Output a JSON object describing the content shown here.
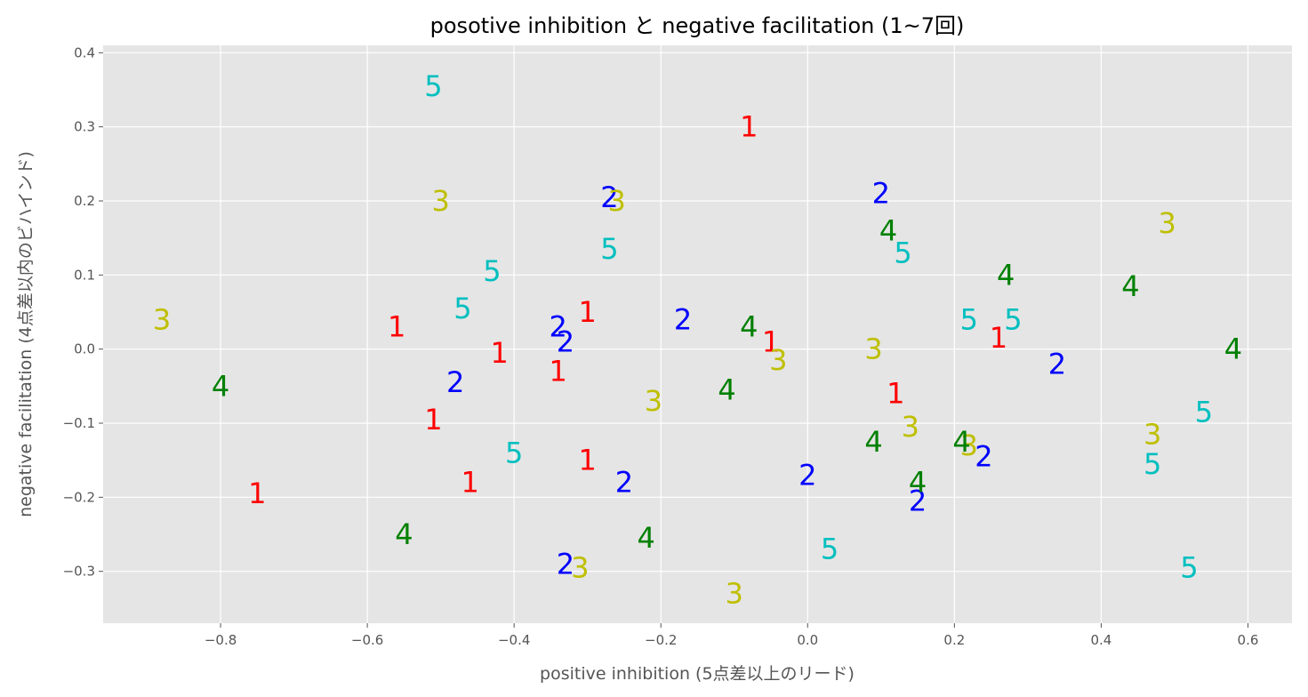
{
  "chart_data": {
    "type": "scatter",
    "title": "posotive inhibition と negative facilitation (1~7回)",
    "xlabel": "positive inhibition (5点差以上のリード)",
    "ylabel": "negative facilitation (4点差以内のビハインド)",
    "xlim": [
      -0.96,
      0.66
    ],
    "ylim": [
      -0.37,
      0.41
    ],
    "xticks": [
      -0.8,
      -0.6,
      -0.4,
      -0.2,
      0.0,
      0.2,
      0.4,
      0.6
    ],
    "xtick_labels": [
      "−0.8",
      "−0.6",
      "−0.4",
      "−0.2",
      "0.0",
      "0.2",
      "0.4",
      "0.6"
    ],
    "yticks": [
      -0.3,
      -0.2,
      -0.1,
      0.0,
      0.1,
      0.2,
      0.3,
      0.4
    ],
    "ytick_labels": [
      "−0.3",
      "−0.2",
      "−0.1",
      "0.0",
      "0.1",
      "0.2",
      "0.3",
      "0.4"
    ],
    "grid": true,
    "series": [
      {
        "label": "1",
        "color": "#ff0000",
        "points": [
          {
            "x": -0.08,
            "y": 0.3
          },
          {
            "x": -0.3,
            "y": 0.05
          },
          {
            "x": -0.56,
            "y": 0.03
          },
          {
            "x": -0.42,
            "y": -0.005
          },
          {
            "x": -0.34,
            "y": -0.03
          },
          {
            "x": -0.51,
            "y": -0.095
          },
          {
            "x": -0.3,
            "y": -0.15
          },
          {
            "x": -0.46,
            "y": -0.18
          },
          {
            "x": -0.75,
            "y": -0.195
          },
          {
            "x": -0.05,
            "y": 0.01
          },
          {
            "x": 0.12,
            "y": -0.06
          },
          {
            "x": 0.26,
            "y": 0.015
          }
        ]
      },
      {
        "label": "2",
        "color": "#0000ff",
        "points": [
          {
            "x": -0.27,
            "y": 0.205
          },
          {
            "x": 0.1,
            "y": 0.21
          },
          {
            "x": -0.34,
            "y": 0.03
          },
          {
            "x": -0.33,
            "y": 0.01
          },
          {
            "x": -0.17,
            "y": 0.04
          },
          {
            "x": -0.48,
            "y": -0.045
          },
          {
            "x": -0.25,
            "y": -0.18
          },
          {
            "x": 0.0,
            "y": -0.17
          },
          {
            "x": -0.33,
            "y": -0.29
          },
          {
            "x": 0.34,
            "y": -0.02
          },
          {
            "x": 0.24,
            "y": -0.145
          },
          {
            "x": 0.15,
            "y": -0.205
          }
        ]
      },
      {
        "label": "3",
        "color": "#bfbf00",
        "points": [
          {
            "x": -0.5,
            "y": 0.2
          },
          {
            "x": -0.26,
            "y": 0.2
          },
          {
            "x": -0.88,
            "y": 0.04
          },
          {
            "x": -0.21,
            "y": -0.07
          },
          {
            "x": -0.04,
            "y": -0.015
          },
          {
            "x": 0.09,
            "y": 0.0
          },
          {
            "x": 0.14,
            "y": -0.105
          },
          {
            "x": 0.22,
            "y": -0.13
          },
          {
            "x": 0.49,
            "y": 0.17
          },
          {
            "x": 0.47,
            "y": -0.115
          },
          {
            "x": -0.31,
            "y": -0.295
          },
          {
            "x": -0.1,
            "y": -0.33
          }
        ]
      },
      {
        "label": "4",
        "color": "#008000",
        "points": [
          {
            "x": 0.11,
            "y": 0.16
          },
          {
            "x": 0.27,
            "y": 0.1
          },
          {
            "x": 0.44,
            "y": 0.085
          },
          {
            "x": -0.08,
            "y": 0.03
          },
          {
            "x": -0.11,
            "y": -0.055
          },
          {
            "x": -0.8,
            "y": -0.05
          },
          {
            "x": 0.09,
            "y": -0.125
          },
          {
            "x": 0.21,
            "y": -0.125
          },
          {
            "x": 0.15,
            "y": -0.18
          },
          {
            "x": 0.58,
            "y": 0.0
          },
          {
            "x": -0.55,
            "y": -0.25
          },
          {
            "x": -0.22,
            "y": -0.255
          }
        ]
      },
      {
        "label": "5",
        "color": "#00bfbf",
        "points": [
          {
            "x": -0.51,
            "y": 0.355
          },
          {
            "x": -0.27,
            "y": 0.135
          },
          {
            "x": -0.43,
            "y": 0.105
          },
          {
            "x": -0.47,
            "y": 0.055
          },
          {
            "x": 0.13,
            "y": 0.13
          },
          {
            "x": 0.22,
            "y": 0.04
          },
          {
            "x": 0.28,
            "y": 0.04
          },
          {
            "x": -0.4,
            "y": -0.14
          },
          {
            "x": 0.54,
            "y": -0.085
          },
          {
            "x": 0.47,
            "y": -0.155
          },
          {
            "x": 0.03,
            "y": -0.27
          },
          {
            "x": 0.52,
            "y": -0.295
          }
        ]
      }
    ]
  }
}
